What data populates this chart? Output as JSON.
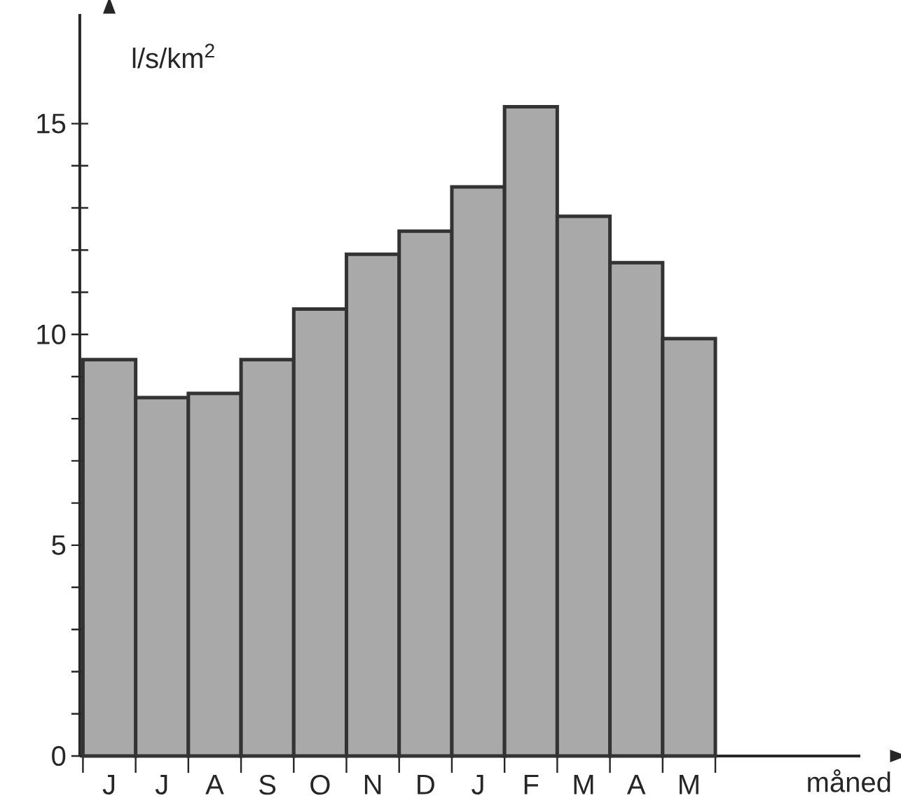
{
  "chart_data": {
    "type": "bar",
    "ylabel": "l/s/km$^{2}$",
    "xlabel": "måned",
    "categories": [
      "J",
      "J",
      "A",
      "S",
      "O",
      "N",
      "D",
      "J",
      "F",
      "M",
      "A",
      "M"
    ],
    "values": [
      9.4,
      8.5,
      8.6,
      9.4,
      10.6,
      11.9,
      12.45,
      13.5,
      15.4,
      12.8,
      11.7,
      9.9
    ],
    "color": "#a9a9a9",
    "ylim": [
      0,
      17.6
    ],
    "yticks": [
      0,
      5,
      10,
      15
    ]
  }
}
